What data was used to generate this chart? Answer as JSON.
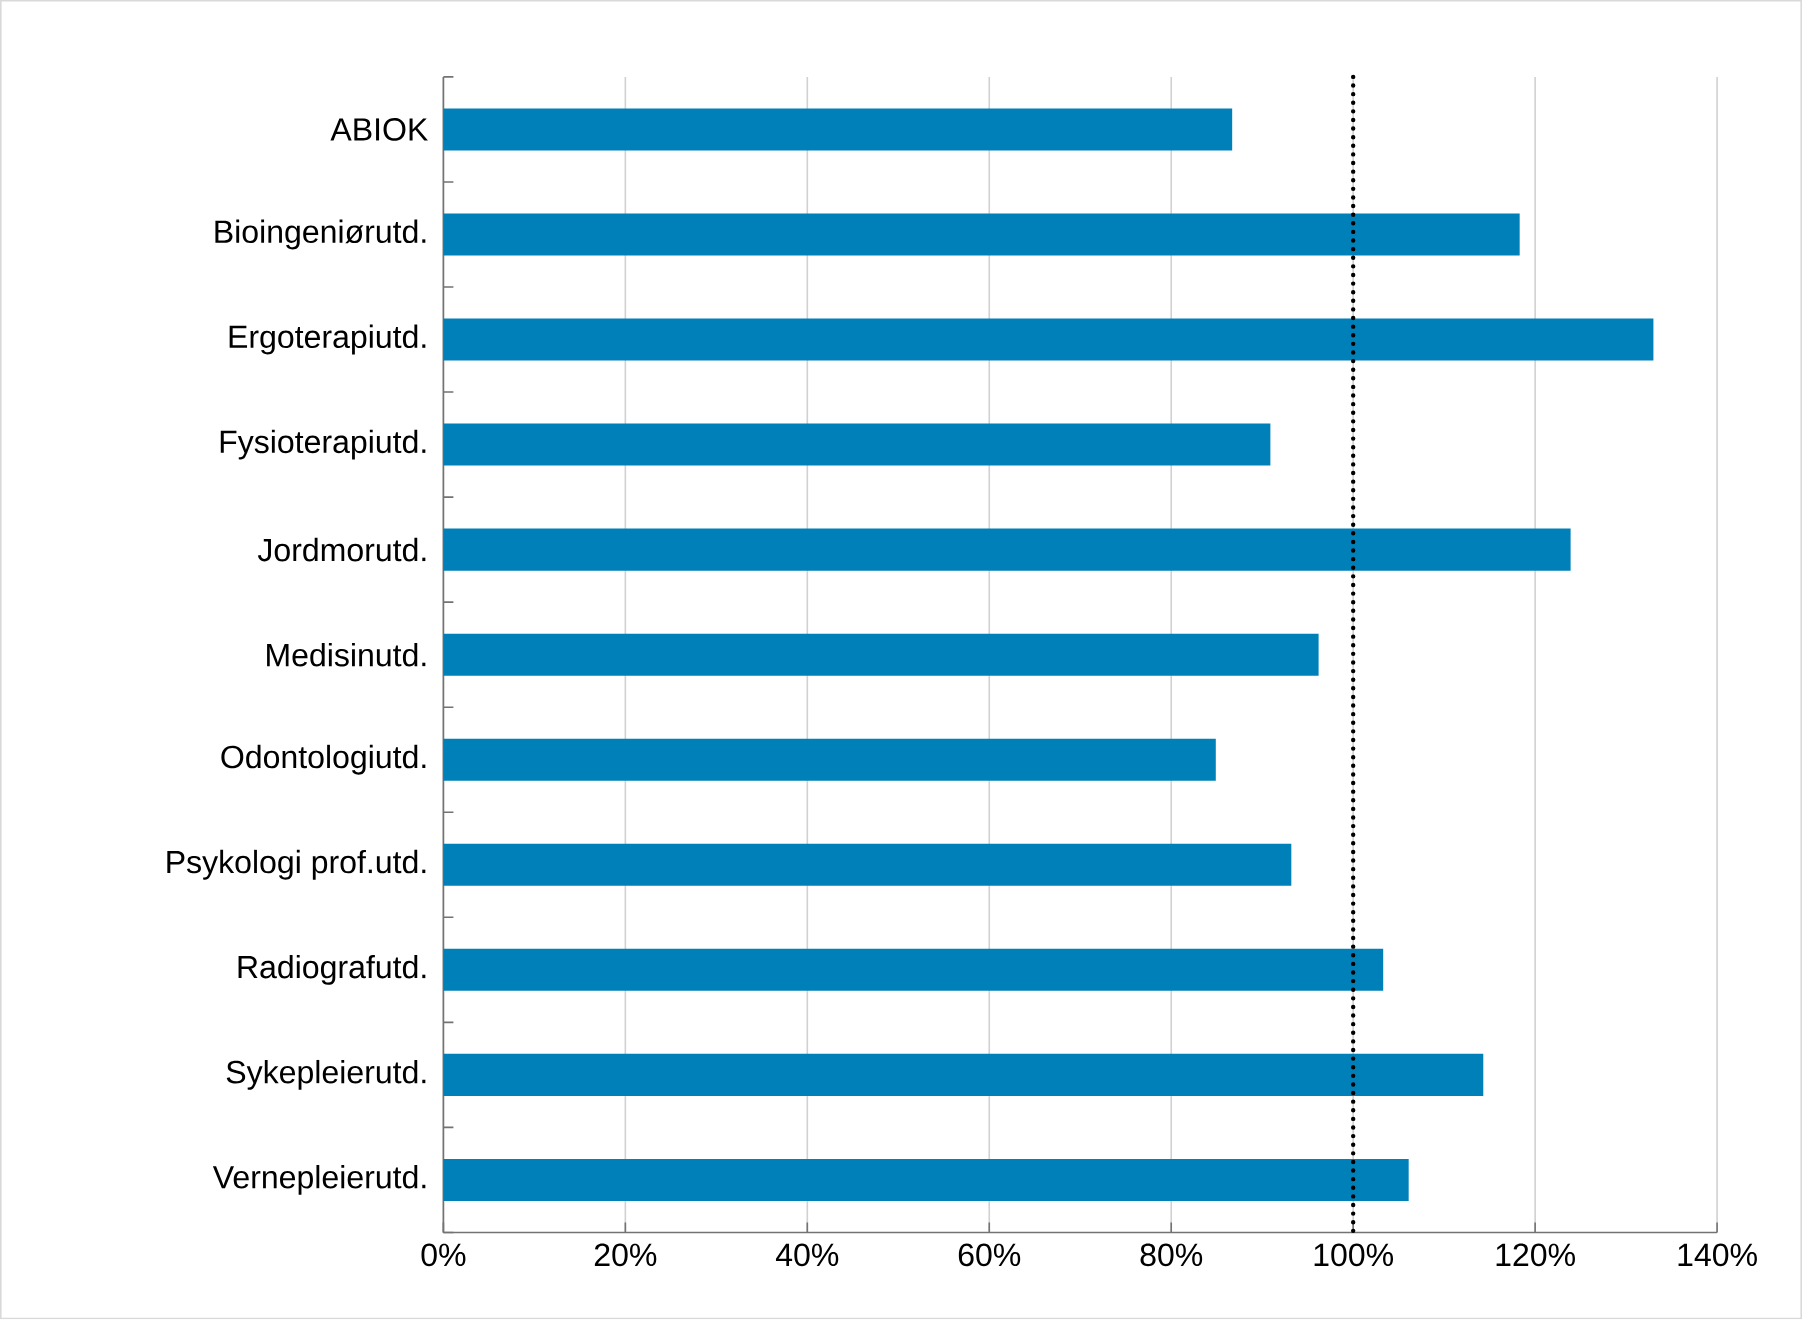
{
  "chart_data": {
    "type": "bar",
    "orientation": "horizontal",
    "categories": [
      "ABIOK",
      "Bioingeniørutd.",
      "Ergoterapiutd.",
      "Fysioterapiutd.",
      "Jordmorutd.",
      "Medisinutd.",
      "Odontologiutd.",
      "Psykologi prof.utd.",
      "Radiografutd.",
      "Sykepleierutd.",
      "Vernepleierutd."
    ],
    "values": [
      86.7,
      118.3,
      133.0,
      90.9,
      123.9,
      96.2,
      84.9,
      93.2,
      103.3,
      114.3,
      106.1
    ],
    "color": "#0080b8",
    "xlim": [
      0,
      140
    ],
    "xticks": [
      {
        "value": 0,
        "label": "0%"
      },
      {
        "value": 20,
        "label": "20%"
      },
      {
        "value": 40,
        "label": "40%"
      },
      {
        "value": 60,
        "label": "60%"
      },
      {
        "value": 80,
        "label": "80%"
      },
      {
        "value": 100,
        "label": "100%"
      },
      {
        "value": 120,
        "label": "120%"
      },
      {
        "value": 140,
        "label": "140%"
      }
    ],
    "grid": "x",
    "ref_lines": [
      {
        "axis": "x",
        "value": 100,
        "line_style": "dotted",
        "color": "#000000"
      }
    ]
  }
}
